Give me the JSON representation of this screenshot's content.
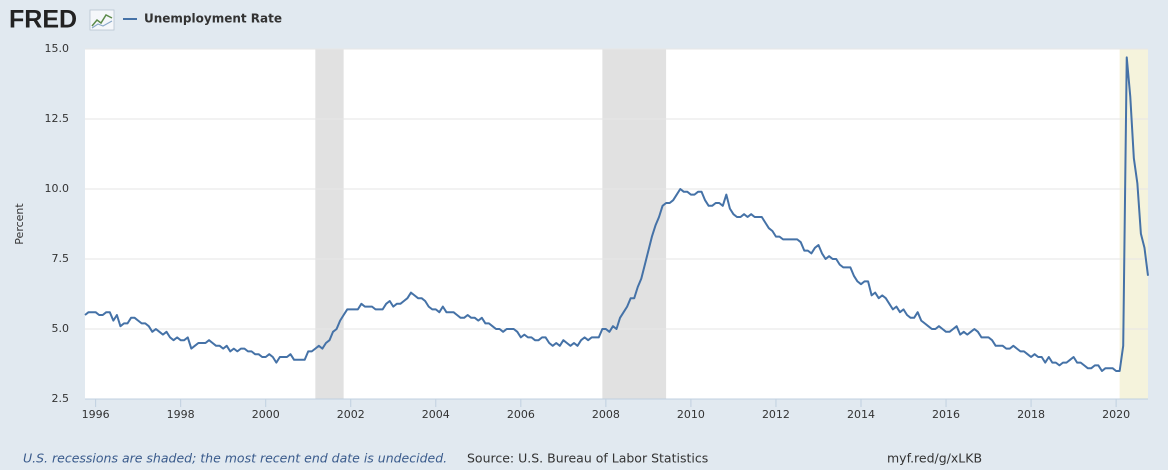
{
  "chart_data": {
    "type": "line",
    "logo": "FRED",
    "ylabel": "Percent",
    "note": "U.S. recessions are shaded; the most recent end date is undecided.",
    "source": "Source: U.S. Bureau of Labor Statistics",
    "link": "myf.red/g/xLKB",
    "xlim": [
      1995.75,
      2020.75
    ],
    "xticks": [
      1996,
      1998,
      2000,
      2002,
      2004,
      2006,
      2008,
      2010,
      2012,
      2014,
      2016,
      2018,
      2020
    ],
    "ylim": [
      2.5,
      15
    ],
    "yticks": [
      2.5,
      {
        "value": 5,
        "label": "5.0"
      },
      7.5,
      {
        "value": 10,
        "label": "10.0"
      },
      12.5,
      {
        "value": 15,
        "label": "15.0"
      }
    ],
    "grid": true,
    "recessions": [
      {
        "start": 2001.167,
        "end": 2001.833,
        "color": "#e1e1e1"
      },
      {
        "start": 2007.917,
        "end": 2009.417,
        "color": "#e1e1e1"
      },
      {
        "start": 2020.083,
        "end": 2020.75,
        "color": "#f5f3dc"
      }
    ],
    "x": [
      1995.75,
      1995.833,
      1995.917,
      1996,
      1996.083,
      1996.167,
      1996.25,
      1996.333,
      1996.417,
      1996.5,
      1996.583,
      1996.667,
      1996.75,
      1996.833,
      1996.917,
      1997,
      1997.083,
      1997.167,
      1997.25,
      1997.333,
      1997.417,
      1997.5,
      1997.583,
      1997.667,
      1997.75,
      1997.833,
      1997.917,
      1998,
      1998.083,
      1998.167,
      1998.25,
      1998.333,
      1998.417,
      1998.5,
      1998.583,
      1998.667,
      1998.75,
      1998.833,
      1998.917,
      1999,
      1999.083,
      1999.167,
      1999.25,
      1999.333,
      1999.417,
      1999.5,
      1999.583,
      1999.667,
      1999.75,
      1999.833,
      1999.917,
      2000,
      2000.083,
      2000.167,
      2000.25,
      2000.333,
      2000.417,
      2000.5,
      2000.583,
      2000.667,
      2000.75,
      2000.833,
      2000.917,
      2001,
      2001.083,
      2001.167,
      2001.25,
      2001.333,
      2001.417,
      2001.5,
      2001.583,
      2001.667,
      2001.75,
      2001.833,
      2001.917,
      2002,
      2002.083,
      2002.167,
      2002.25,
      2002.333,
      2002.417,
      2002.5,
      2002.583,
      2002.667,
      2002.75,
      2002.833,
      2002.917,
      2003,
      2003.083,
      2003.167,
      2003.25,
      2003.333,
      2003.417,
      2003.5,
      2003.583,
      2003.667,
      2003.75,
      2003.833,
      2003.917,
      2004,
      2004.083,
      2004.167,
      2004.25,
      2004.333,
      2004.417,
      2004.5,
      2004.583,
      2004.667,
      2004.75,
      2004.833,
      2004.917,
      2005,
      2005.083,
      2005.167,
      2005.25,
      2005.333,
      2005.417,
      2005.5,
      2005.583,
      2005.667,
      2005.75,
      2005.833,
      2005.917,
      2006,
      2006.083,
      2006.167,
      2006.25,
      2006.333,
      2006.417,
      2006.5,
      2006.583,
      2006.667,
      2006.75,
      2006.833,
      2006.917,
      2007,
      2007.083,
      2007.167,
      2007.25,
      2007.333,
      2007.417,
      2007.5,
      2007.583,
      2007.667,
      2007.75,
      2007.833,
      2007.917,
      2008,
      2008.083,
      2008.167,
      2008.25,
      2008.333,
      2008.417,
      2008.5,
      2008.583,
      2008.667,
      2008.75,
      2008.833,
      2008.917,
      2009,
      2009.083,
      2009.167,
      2009.25,
      2009.333,
      2009.417,
      2009.5,
      2009.583,
      2009.667,
      2009.75,
      2009.833,
      2009.917,
      2010,
      2010.083,
      2010.167,
      2010.25,
      2010.333,
      2010.417,
      2010.5,
      2010.583,
      2010.667,
      2010.75,
      2010.833,
      2010.917,
      2011,
      2011.083,
      2011.167,
      2011.25,
      2011.333,
      2011.417,
      2011.5,
      2011.583,
      2011.667,
      2011.75,
      2011.833,
      2011.917,
      2012,
      2012.083,
      2012.167,
      2012.25,
      2012.333,
      2012.417,
      2012.5,
      2012.583,
      2012.667,
      2012.75,
      2012.833,
      2012.917,
      2013,
      2013.083,
      2013.167,
      2013.25,
      2013.333,
      2013.417,
      2013.5,
      2013.583,
      2013.667,
      2013.75,
      2013.833,
      2013.917,
      2014,
      2014.083,
      2014.167,
      2014.25,
      2014.333,
      2014.417,
      2014.5,
      2014.583,
      2014.667,
      2014.75,
      2014.833,
      2014.917,
      2015,
      2015.083,
      2015.167,
      2015.25,
      2015.333,
      2015.417,
      2015.5,
      2015.583,
      2015.667,
      2015.75,
      2015.833,
      2015.917,
      2016,
      2016.083,
      2016.167,
      2016.25,
      2016.333,
      2016.417,
      2016.5,
      2016.583,
      2016.667,
      2016.75,
      2016.833,
      2016.917,
      2017,
      2017.083,
      2017.167,
      2017.25,
      2017.333,
      2017.417,
      2017.5,
      2017.583,
      2017.667,
      2017.75,
      2017.833,
      2017.917,
      2018,
      2018.083,
      2018.167,
      2018.25,
      2018.333,
      2018.417,
      2018.5,
      2018.583,
      2018.667,
      2018.75,
      2018.833,
      2018.917,
      2019,
      2019.083,
      2019.167,
      2019.25,
      2019.333,
      2019.417,
      2019.5,
      2019.583,
      2019.667,
      2019.75,
      2019.833,
      2019.917,
      2020,
      2020.083,
      2020.167,
      2020.25,
      2020.333,
      2020.417,
      2020.5,
      2020.583,
      2020.667,
      2020.75
    ],
    "series": [
      {
        "name": "Unemployment Rate",
        "color": "#4572a7",
        "values": [
          5.5,
          5.6,
          5.6,
          5.6,
          5.5,
          5.5,
          5.6,
          5.6,
          5.3,
          5.5,
          5.1,
          5.2,
          5.2,
          5.4,
          5.4,
          5.3,
          5.2,
          5.2,
          5.1,
          4.9,
          5.0,
          4.9,
          4.8,
          4.9,
          4.7,
          4.6,
          4.7,
          4.6,
          4.6,
          4.7,
          4.3,
          4.4,
          4.5,
          4.5,
          4.5,
          4.6,
          4.5,
          4.4,
          4.4,
          4.3,
          4.4,
          4.2,
          4.3,
          4.2,
          4.3,
          4.3,
          4.2,
          4.2,
          4.1,
          4.1,
          4.0,
          4.0,
          4.1,
          4.0,
          3.8,
          4.0,
          4.0,
          4.0,
          4.1,
          3.9,
          3.9,
          3.9,
          3.9,
          4.2,
          4.2,
          4.3,
          4.4,
          4.3,
          4.5,
          4.6,
          4.9,
          5.0,
          5.3,
          5.5,
          5.7,
          5.7,
          5.7,
          5.7,
          5.9,
          5.8,
          5.8,
          5.8,
          5.7,
          5.7,
          5.7,
          5.9,
          6.0,
          5.8,
          5.9,
          5.9,
          6.0,
          6.1,
          6.3,
          6.2,
          6.1,
          6.1,
          6.0,
          5.8,
          5.7,
          5.7,
          5.6,
          5.8,
          5.6,
          5.6,
          5.6,
          5.5,
          5.4,
          5.4,
          5.5,
          5.4,
          5.4,
          5.3,
          5.4,
          5.2,
          5.2,
          5.1,
          5.0,
          5.0,
          4.9,
          5.0,
          5.0,
          5.0,
          4.9,
          4.7,
          4.8,
          4.7,
          4.7,
          4.6,
          4.6,
          4.7,
          4.7,
          4.5,
          4.4,
          4.5,
          4.4,
          4.6,
          4.5,
          4.4,
          4.5,
          4.4,
          4.6,
          4.7,
          4.6,
          4.7,
          4.7,
          4.7,
          5.0,
          5.0,
          4.9,
          5.1,
          5.0,
          5.4,
          5.6,
          5.8,
          6.1,
          6.1,
          6.5,
          6.8,
          7.3,
          7.8,
          8.3,
          8.7,
          9.0,
          9.4,
          9.5,
          9.5,
          9.6,
          9.8,
          10.0,
          9.9,
          9.9,
          9.8,
          9.8,
          9.9,
          9.9,
          9.6,
          9.4,
          9.4,
          9.5,
          9.5,
          9.4,
          9.8,
          9.3,
          9.1,
          9.0,
          9.0,
          9.1,
          9.0,
          9.1,
          9.0,
          9.0,
          9.0,
          8.8,
          8.6,
          8.5,
          8.3,
          8.3,
          8.2,
          8.2,
          8.2,
          8.2,
          8.2,
          8.1,
          7.8,
          7.8,
          7.7,
          7.9,
          8.0,
          7.7,
          7.5,
          7.6,
          7.5,
          7.5,
          7.3,
          7.2,
          7.2,
          7.2,
          6.9,
          6.7,
          6.6,
          6.7,
          6.7,
          6.2,
          6.3,
          6.1,
          6.2,
          6.1,
          5.9,
          5.7,
          5.8,
          5.6,
          5.7,
          5.5,
          5.4,
          5.4,
          5.6,
          5.3,
          5.2,
          5.1,
          5.0,
          5.0,
          5.1,
          5.0,
          4.9,
          4.9,
          5.0,
          5.1,
          4.8,
          4.9,
          4.8,
          4.9,
          5.0,
          4.9,
          4.7,
          4.7,
          4.7,
          4.6,
          4.4,
          4.4,
          4.4,
          4.3,
          4.3,
          4.4,
          4.3,
          4.2,
          4.2,
          4.1,
          4.0,
          4.1,
          4.0,
          4.0,
          3.8,
          4.0,
          3.8,
          3.8,
          3.7,
          3.8,
          3.8,
          3.9,
          4.0,
          3.8,
          3.8,
          3.7,
          3.6,
          3.6,
          3.7,
          3.7,
          3.5,
          3.6,
          3.6,
          3.6,
          3.5,
          3.5,
          4.4,
          14.7,
          13.3,
          11.1,
          10.2,
          8.4,
          7.9,
          6.9
        ]
      }
    ]
  }
}
